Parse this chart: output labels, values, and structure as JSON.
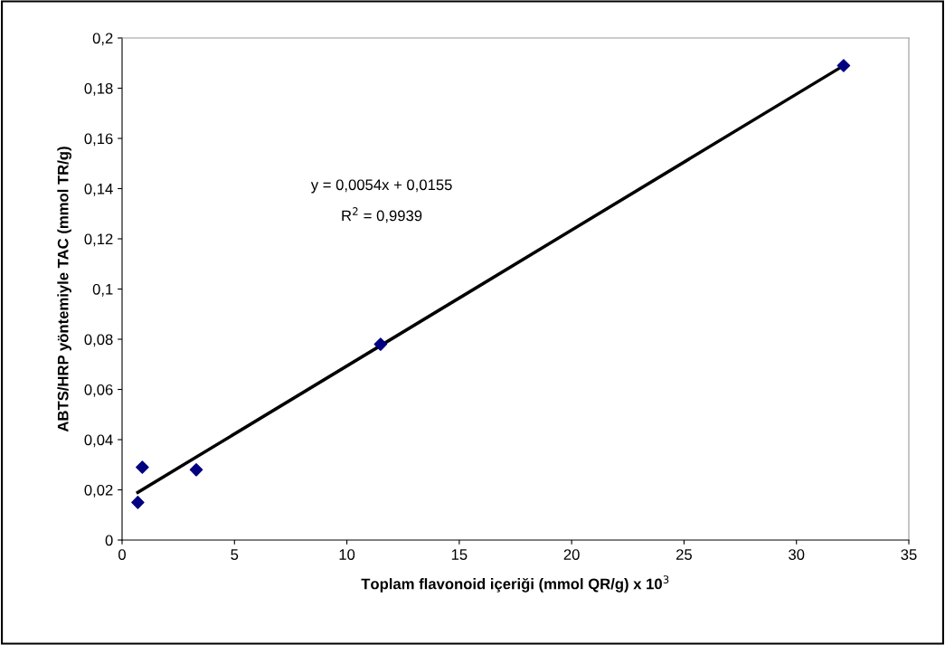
{
  "chart_data": {
    "type": "scatter",
    "xlabel": "Toplam flavonoid içeriği (mmol QR/g) x 10$^{3}$",
    "ylabel": "ABTS/HRP yöntemiyle TAC (mmol TR/g)",
    "series": [
      {
        "color": "#000080",
        "marker": "diamond",
        "x": [
          0.7,
          0.9,
          3.3,
          11.5,
          32.1
        ],
        "values": [
          0.015,
          0.029,
          0.028,
          0.078,
          0.189
        ]
      },
      {
        "type": "line",
        "color": "#000000",
        "marker": "none",
        "x": [
          0.7,
          32.1
        ],
        "values": [
          0.019,
          0.189
        ]
      }
    ],
    "annotations": [
      "y = 0,0054x + 0,0155",
      "R$^{2}$ = 0,9939"
    ],
    "xlim": [
      0,
      35
    ],
    "xticks": [
      0,
      5,
      10,
      15,
      20,
      25,
      30,
      35
    ],
    "ylim": [
      0,
      0.2
    ],
    "yticks": [
      {
        "value": 0,
        "label": "0"
      },
      {
        "value": 0.02,
        "label": "0,02"
      },
      {
        "value": 0.04,
        "label": "0,04"
      },
      {
        "value": 0.06,
        "label": "0,06"
      },
      {
        "value": 0.08,
        "label": "0,08"
      },
      {
        "value": 0.1,
        "label": "0,1"
      },
      {
        "value": 0.12,
        "label": "0,12"
      },
      {
        "value": 0.14,
        "label": "0,14"
      },
      {
        "value": 0.16,
        "label": "0,16"
      },
      {
        "value": 0.18,
        "label": "0,18"
      },
      {
        "value": 0.2,
        "label": "0,2"
      }
    ],
    "grid": false,
    "legend": false
  }
}
